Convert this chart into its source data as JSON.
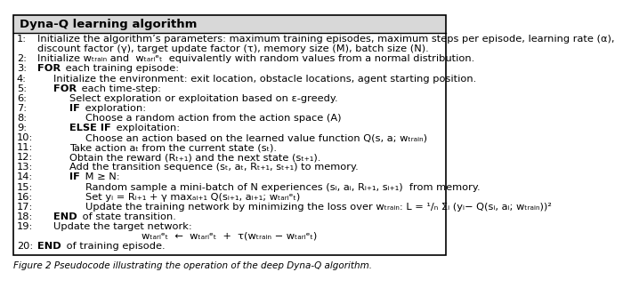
{
  "title": "Dyna-Q learning algorithm",
  "lines": [
    {
      "num": "1:",
      "indent": 0,
      "text": "Initialize the algorithm’s parameters: maximum training episodes, maximum steps per episode, learning rate (α),",
      "bold_words": []
    },
    {
      "num": "",
      "indent": 0,
      "text": "discount factor (γ), target update factor (τ), memory size (M), batch size (N).",
      "bold_words": []
    },
    {
      "num": "2:",
      "indent": 0,
      "text": "Initialize wₜᵣₐᵢₙ and  wₜₐᵣᵢᵉₜ  equivalently with random values from a normal distribution.",
      "bold_words": []
    },
    {
      "num": "3:",
      "indent": 0,
      "text": "FOR each training episode:",
      "bold_words": [
        "FOR"
      ]
    },
    {
      "num": "4:",
      "indent": 1,
      "text": "Initialize the environment: exit location, obstacle locations, agent starting position.",
      "bold_words": []
    },
    {
      "num": "5:",
      "indent": 1,
      "text": "FOR each time-step:",
      "bold_words": [
        "FOR"
      ]
    },
    {
      "num": "6:",
      "indent": 2,
      "text": "Select exploration or exploitation based on ε-greedy.",
      "bold_words": []
    },
    {
      "num": "7:",
      "indent": 2,
      "text": "IF exploration:",
      "bold_words": [
        "IF"
      ]
    },
    {
      "num": "8:",
      "indent": 3,
      "text": "Choose a random action from the action space (A)",
      "bold_words": []
    },
    {
      "num": "9:",
      "indent": 2,
      "text": "ELSE IF exploitation:",
      "bold_words": [
        "ELSE IF"
      ]
    },
    {
      "num": "10:",
      "indent": 3,
      "text": "Choose an action based on the learned value function Q(s, a; wₜᵣₐᵢₙ)",
      "bold_words": []
    },
    {
      "num": "11:",
      "indent": 2,
      "text": "Take action aₜ from the current state (sₜ).",
      "bold_words": []
    },
    {
      "num": "12:",
      "indent": 2,
      "text": "Obtain the reward (Rₜ₊₁) and the next state (sₜ₊₁).",
      "bold_words": []
    },
    {
      "num": "13:",
      "indent": 2,
      "text": "Add the transition sequence (sₜ, aₜ, Rₜ₊₁, sₜ₊₁) to memory.",
      "bold_words": []
    },
    {
      "num": "14:",
      "indent": 2,
      "text": "IF M ≥ N:",
      "bold_words": [
        "IF"
      ]
    },
    {
      "num": "15:",
      "indent": 3,
      "text": "Random sample a mini-batch of N experiences (sᵢ, aᵢ, Rᵢ₊₁, sᵢ₊₁)  from memory.",
      "bold_words": []
    },
    {
      "num": "16:",
      "indent": 3,
      "text": "Set yᵢ = Rᵢ₊₁ + γ maxₐᵢ₊₁ Q(sᵢ₊₁, aᵢ₊₁; wₜₐᵣᵢᵉₜ)",
      "bold_words": []
    },
    {
      "num": "17:",
      "indent": 3,
      "text": "Update the training network by minimizing the loss over wₜᵣₐᵢₙ: L = ¹/ₙ Σᵢ (yᵢ− Q(sᵢ, aᵢ; wₜᵣₐᵢₙ))²",
      "bold_words": []
    },
    {
      "num": "18:",
      "indent": 1,
      "text": "END of state transition.",
      "bold_words": [
        "END"
      ]
    },
    {
      "num": "19:",
      "indent": 1,
      "text": "Update the target network:",
      "bold_words": []
    },
    {
      "num": "",
      "indent": 4,
      "text": "wₜₐᵣᵢᵉₜ  ←  wₜₐᵣᵢᵉₜ  +  τ(wₜᵣₐᵢₙ − wₜₐᵣᵢᵉₜ)",
      "bold_words": []
    },
    {
      "num": "20:",
      "indent": 0,
      "text": "END of training episode.",
      "bold_words": [
        "END"
      ]
    }
  ],
  "caption": "Figure 2 Pseudocode illustrating the operation of the deep Dyna-Q algorithm.",
  "bg_color": "#ffffff",
  "border_color": "#000000",
  "title_bg": "#d8d8d8",
  "font_size": 8.2,
  "title_font_size": 9.5
}
